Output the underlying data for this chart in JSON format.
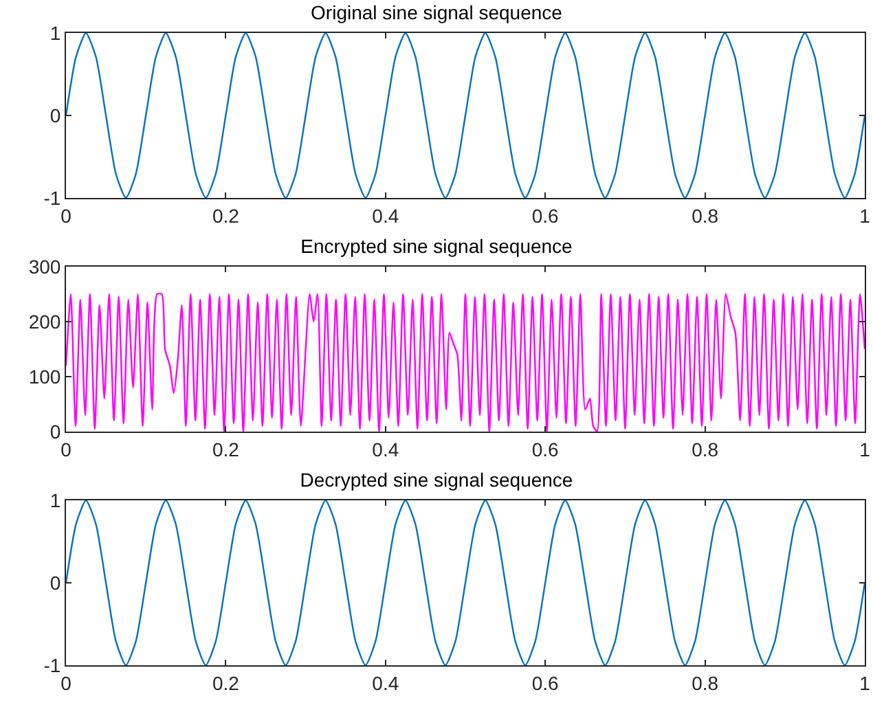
{
  "chart_data": [
    {
      "type": "line",
      "title": "Original sine signal sequence",
      "x": [
        0,
        0.0125,
        0.025,
        0.0375,
        0.05,
        0.0625,
        0.075,
        0.0875,
        0.1,
        0.1125,
        0.125,
        0.1375,
        0.15,
        0.1625,
        0.175,
        0.1875,
        0.2,
        0.2125,
        0.225,
        0.2375,
        0.25,
        0.2625,
        0.275,
        0.2875,
        0.3,
        0.3125,
        0.325,
        0.3375,
        0.35,
        0.3625,
        0.375,
        0.3875,
        0.4,
        0.4125,
        0.425,
        0.4375,
        0.45,
        0.4625,
        0.475,
        0.4875,
        0.5,
        0.5125,
        0.525,
        0.5375,
        0.55,
        0.5625,
        0.575,
        0.5875,
        0.6,
        0.6125,
        0.625,
        0.6375,
        0.65,
        0.6625,
        0.675,
        0.6875,
        0.7,
        0.7125,
        0.725,
        0.7375,
        0.75,
        0.7625,
        0.775,
        0.7875,
        0.8,
        0.8125,
        0.825,
        0.8375,
        0.85,
        0.8625,
        0.875,
        0.8875,
        0.9,
        0.9125,
        0.925,
        0.9375,
        0.95,
        0.9625,
        0.975,
        0.9875,
        1
      ],
      "series": [
        {
          "color": "#0072bd",
          "values": [
            0,
            0.71,
            1,
            0.71,
            0,
            -0.71,
            -1,
            -0.71,
            0,
            0.71,
            1,
            0.71,
            0,
            -0.71,
            -1,
            -0.71,
            0,
            0.71,
            1,
            0.71,
            0,
            -0.71,
            -1,
            -0.71,
            0,
            0.71,
            1,
            0.71,
            0,
            -0.71,
            -1,
            -0.71,
            0,
            0.71,
            1,
            0.71,
            0,
            -0.71,
            -1,
            -0.71,
            0,
            0.71,
            1,
            0.71,
            0,
            -0.71,
            -1,
            -0.71,
            0,
            0.71,
            1,
            0.71,
            0,
            -0.71,
            -1,
            -0.71,
            0,
            0.71,
            1,
            0.71,
            0,
            -0.71,
            -1,
            -0.71,
            0,
            0.71,
            1,
            0.71,
            0,
            -0.71,
            -1,
            -0.71,
            0,
            0.71,
            1,
            0.71,
            0,
            -0.71,
            -1,
            -0.71,
            0
          ]
        }
      ],
      "xlim": [
        0,
        1
      ],
      "xticks": [
        0,
        0.2,
        0.4,
        0.6,
        0.8,
        1
      ],
      "ylim": [
        -1,
        1
      ],
      "yticks": [
        -1,
        0,
        1
      ],
      "grid": false,
      "marker": "none",
      "line_style": "solid"
    },
    {
      "type": "line",
      "title": "Encrypted sine signal sequence",
      "x": [
        0,
        0.006,
        0.012,
        0.018,
        0.024,
        0.03,
        0.036,
        0.042,
        0.048,
        0.054,
        0.06,
        0.066,
        0.072,
        0.078,
        0.084,
        0.09,
        0.096,
        0.102,
        0.108,
        0.114,
        0.12,
        0.124,
        0.13,
        0.135,
        0.14,
        0.145,
        0.15,
        0.156,
        0.162,
        0.168,
        0.174,
        0.18,
        0.186,
        0.192,
        0.198,
        0.204,
        0.21,
        0.216,
        0.222,
        0.228,
        0.234,
        0.24,
        0.246,
        0.252,
        0.258,
        0.264,
        0.27,
        0.276,
        0.282,
        0.288,
        0.294,
        0.305,
        0.31,
        0.315,
        0.32,
        0.326,
        0.332,
        0.338,
        0.344,
        0.35,
        0.356,
        0.362,
        0.368,
        0.374,
        0.38,
        0.386,
        0.392,
        0.398,
        0.404,
        0.41,
        0.416,
        0.422,
        0.428,
        0.434,
        0.44,
        0.446,
        0.452,
        0.458,
        0.464,
        0.47,
        0.476,
        0.48,
        0.485,
        0.49,
        0.495,
        0.5,
        0.506,
        0.512,
        0.518,
        0.524,
        0.53,
        0.536,
        0.542,
        0.548,
        0.554,
        0.56,
        0.566,
        0.572,
        0.578,
        0.584,
        0.59,
        0.596,
        0.602,
        0.608,
        0.614,
        0.62,
        0.626,
        0.632,
        0.638,
        0.644,
        0.65,
        0.656,
        0.66,
        0.665,
        0.67,
        0.676,
        0.682,
        0.688,
        0.694,
        0.7,
        0.706,
        0.712,
        0.718,
        0.724,
        0.73,
        0.736,
        0.742,
        0.748,
        0.754,
        0.76,
        0.766,
        0.772,
        0.778,
        0.784,
        0.79,
        0.796,
        0.802,
        0.808,
        0.814,
        0.82,
        0.826,
        0.832,
        0.838,
        0.844,
        0.85,
        0.856,
        0.862,
        0.868,
        0.874,
        0.88,
        0.886,
        0.892,
        0.898,
        0.904,
        0.91,
        0.916,
        0.922,
        0.928,
        0.934,
        0.94,
        0.946,
        0.952,
        0.958,
        0.964,
        0.97,
        0.976,
        0.982,
        0.988,
        0.994,
        1
      ],
      "series": [
        {
          "color": "#ff00ff",
          "values": [
            120,
            250,
            10,
            240,
            30,
            250,
            5,
            230,
            60,
            250,
            20,
            245,
            15,
            240,
            80,
            250,
            10,
            235,
            40,
            250,
            250,
            150,
            120,
            70,
            130,
            230,
            10,
            250,
            20,
            240,
            5,
            250,
            30,
            245,
            0,
            250,
            15,
            240,
            0,
            250,
            20,
            235,
            10,
            250,
            25,
            240,
            5,
            250,
            30,
            245,
            10,
            250,
            200,
            250,
            10,
            250,
            20,
            240,
            10,
            250,
            30,
            245,
            5,
            250,
            20,
            240,
            0,
            250,
            25,
            235,
            10,
            250,
            30,
            240,
            5,
            250,
            20,
            245,
            15,
            250,
            40,
            180,
            160,
            140,
            20,
            250,
            10,
            245,
            30,
            250,
            0,
            240,
            20,
            250,
            10,
            235,
            30,
            250,
            5,
            245,
            20,
            250,
            0,
            240,
            25,
            250,
            15,
            245,
            10,
            250,
            40,
            60,
            10,
            0,
            250,
            10,
            250,
            20,
            245,
            5,
            250,
            30,
            240,
            15,
            250,
            10,
            245,
            25,
            250,
            5,
            240,
            30,
            250,
            15,
            245,
            10,
            250,
            20,
            240,
            60,
            250,
            210,
            180,
            20,
            250,
            10,
            245,
            30,
            250,
            5,
            240,
            20,
            250,
            10,
            245,
            40,
            250,
            15,
            240,
            5,
            250,
            30,
            245,
            10,
            250,
            20,
            240,
            15,
            250,
            150
          ]
        }
      ],
      "xlim": [
        0,
        1
      ],
      "xticks": [
        0,
        0.2,
        0.4,
        0.6,
        0.8,
        1
      ],
      "ylim": [
        0,
        300
      ],
      "yticks": [
        0,
        100,
        200,
        300
      ],
      "grid": false,
      "marker": "none",
      "line_style": "solid"
    },
    {
      "type": "line",
      "title": "Decrypted sine signal sequence",
      "x": [
        0,
        0.0125,
        0.025,
        0.0375,
        0.05,
        0.0625,
        0.075,
        0.0875,
        0.1,
        0.1125,
        0.125,
        0.1375,
        0.15,
        0.1625,
        0.175,
        0.1875,
        0.2,
        0.2125,
        0.225,
        0.2375,
        0.25,
        0.2625,
        0.275,
        0.2875,
        0.3,
        0.3125,
        0.325,
        0.3375,
        0.35,
        0.3625,
        0.375,
        0.3875,
        0.4,
        0.4125,
        0.425,
        0.4375,
        0.45,
        0.4625,
        0.475,
        0.4875,
        0.5,
        0.5125,
        0.525,
        0.5375,
        0.55,
        0.5625,
        0.575,
        0.5875,
        0.6,
        0.6125,
        0.625,
        0.6375,
        0.65,
        0.6625,
        0.675,
        0.6875,
        0.7,
        0.7125,
        0.725,
        0.7375,
        0.75,
        0.7625,
        0.775,
        0.7875,
        0.8,
        0.8125,
        0.825,
        0.8375,
        0.85,
        0.8625,
        0.875,
        0.8875,
        0.9,
        0.9125,
        0.925,
        0.9375,
        0.95,
        0.9625,
        0.975,
        0.9875,
        1
      ],
      "series": [
        {
          "color": "#0072bd",
          "values": [
            0,
            0.71,
            1,
            0.71,
            0,
            -0.71,
            -1,
            -0.71,
            0,
            0.71,
            1,
            0.71,
            0,
            -0.71,
            -1,
            -0.71,
            0,
            0.71,
            1,
            0.71,
            0,
            -0.71,
            -1,
            -0.71,
            0,
            0.71,
            1,
            0.71,
            0,
            -0.71,
            -1,
            -0.71,
            0,
            0.71,
            1,
            0.71,
            0,
            -0.71,
            -1,
            -0.71,
            0,
            0.71,
            1,
            0.71,
            0,
            -0.71,
            -1,
            -0.71,
            0,
            0.71,
            1,
            0.71,
            0,
            -0.71,
            -1,
            -0.71,
            0,
            0.71,
            1,
            0.71,
            0,
            -0.71,
            -1,
            -0.71,
            0,
            0.71,
            1,
            0.71,
            0,
            -0.71,
            -1,
            -0.71,
            0,
            0.71,
            1,
            0.71,
            0,
            -0.71,
            -1,
            -0.71,
            0
          ]
        }
      ],
      "xlim": [
        0,
        1
      ],
      "xticks": [
        0,
        0.2,
        0.4,
        0.6,
        0.8,
        1
      ],
      "ylim": [
        -1,
        1
      ],
      "yticks": [
        -1,
        0,
        1
      ],
      "grid": false,
      "marker": "none",
      "line_style": "solid"
    }
  ]
}
